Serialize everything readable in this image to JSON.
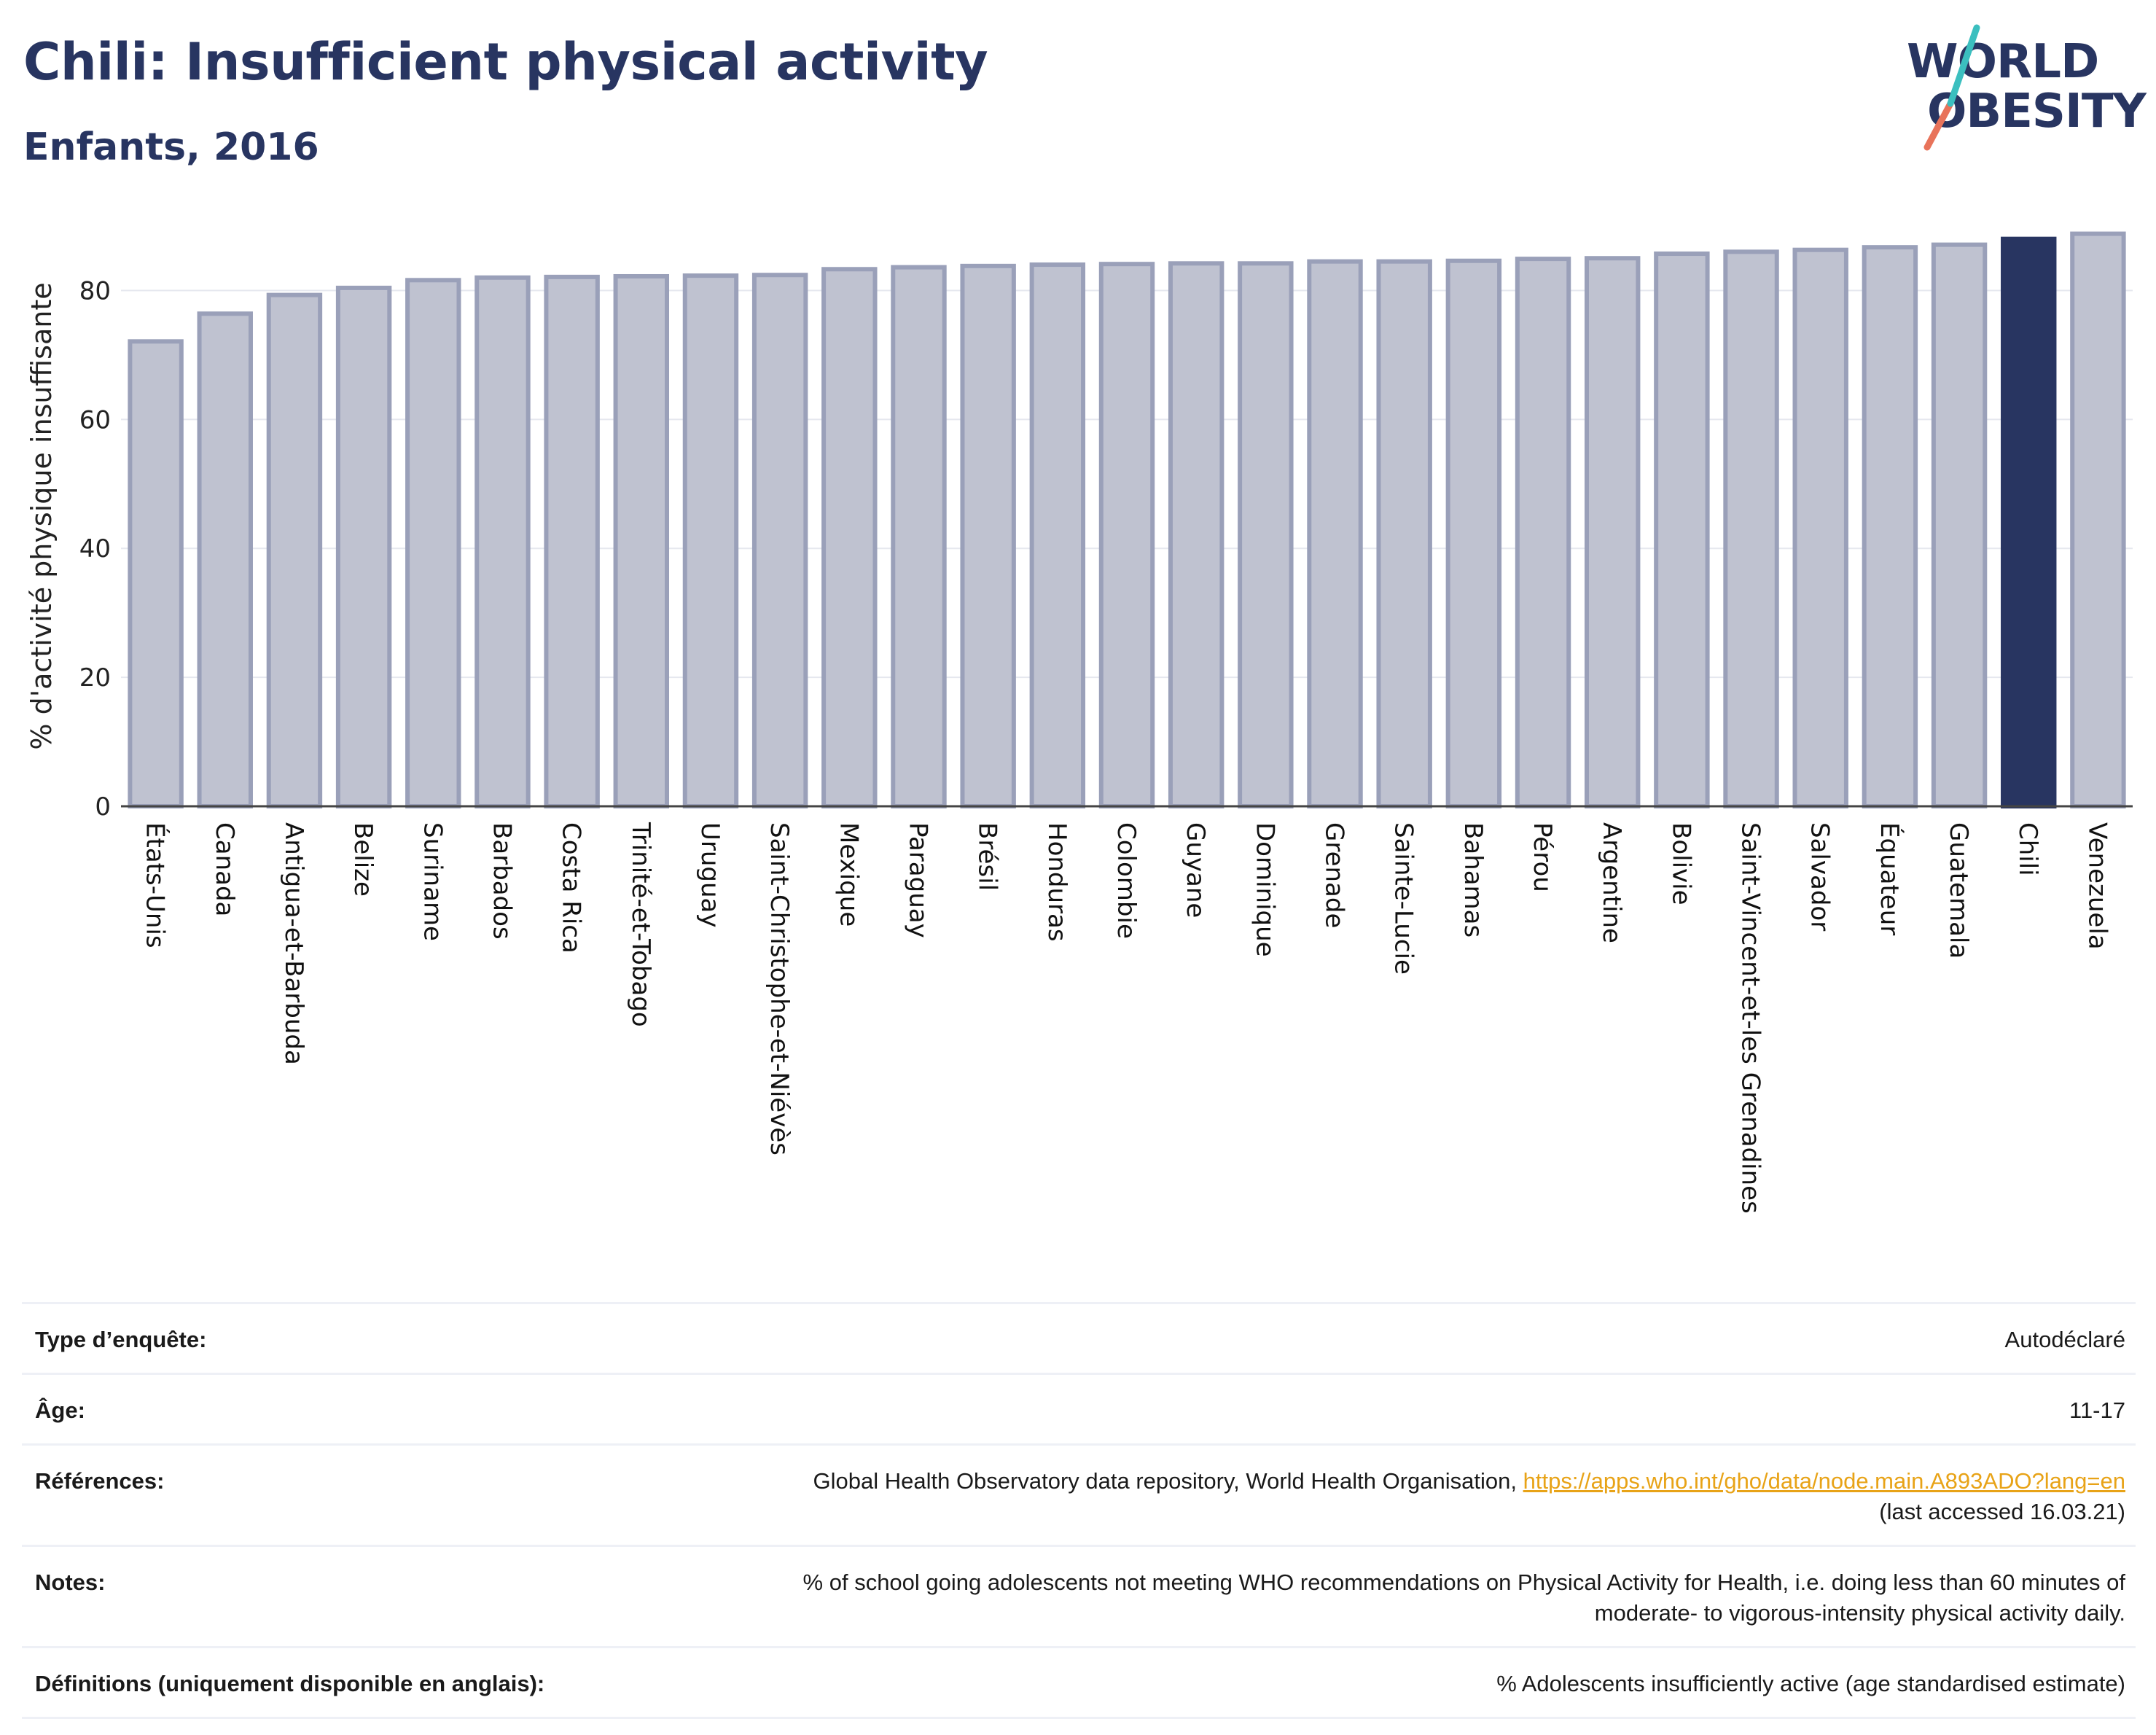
{
  "header": {
    "title": "Chili: Insufficient physical activity",
    "subtitle": "Enfants, 2016"
  },
  "logo": {
    "line1": "WORLD",
    "line2": "OBESITY"
  },
  "colors": {
    "bar": "#bfc2d0",
    "bar_edge": "#9aa0b9",
    "highlight": "#283561",
    "title": "#283561",
    "link": "#e8a317"
  },
  "chart_data": {
    "type": "bar",
    "title": "Chili: Insufficient physical activity",
    "subtitle": "Enfants, 2016",
    "xlabel": "",
    "ylabel": "% d'activité physique insuffisante",
    "ylim": [
      0,
      90
    ],
    "yticks": [
      0,
      20,
      40,
      60,
      80
    ],
    "grid": true,
    "highlight": "Chili",
    "categories": [
      "États-Unis",
      "Canada",
      "Antigua-et-Barbuda",
      "Belize",
      "Suriname",
      "Barbados",
      "Costa Rica",
      "Trinité-et-Tobago",
      "Uruguay",
      "Saint-Christophe-et-Niévès",
      "Mexique",
      "Paraguay",
      "Brésil",
      "Honduras",
      "Colombie",
      "Guyane",
      "Dominique",
      "Grenade",
      "Sainte-Lucie",
      "Bahamas",
      "Pérou",
      "Argentine",
      "Bolivie",
      "Saint-Vincent-et-les Grenadines",
      "Salvador",
      "Équateur",
      "Guatemala",
      "Chili",
      "Venezuela"
    ],
    "values": [
      72.1,
      76.4,
      79.3,
      80.4,
      81.6,
      82.0,
      82.1,
      82.2,
      82.3,
      82.4,
      83.3,
      83.6,
      83.8,
      84.0,
      84.1,
      84.2,
      84.2,
      84.5,
      84.5,
      84.6,
      84.9,
      85.0,
      85.7,
      86.0,
      86.3,
      86.7,
      87.1,
      88.0,
      88.8
    ]
  },
  "meta": {
    "survey_label": "Type d’enquête:",
    "survey_value": "Autodéclaré",
    "age_label": "Âge:",
    "age_value": "11-17",
    "refs_label": "Références:",
    "refs_text": "Global Health Observatory data repository, World Health Organisation,",
    "refs_link": "https://apps.who.int/gho/data/node.main.A893ADO?lang=en",
    "refs_access": "(last accessed 16.03.21)",
    "notes_label": "Notes:",
    "notes_line1": "% of school going adolescents not meeting WHO recommendations on Physical Activity for Health, i.e. doing less than 60 minutes of",
    "notes_line2": "moderate- to vigorous-intensity physical activity daily.",
    "defs_label": "Définitions (uniquement disponible en anglais):",
    "defs_value": "% Adolescents insufficiently active (age standardised estimate)"
  }
}
